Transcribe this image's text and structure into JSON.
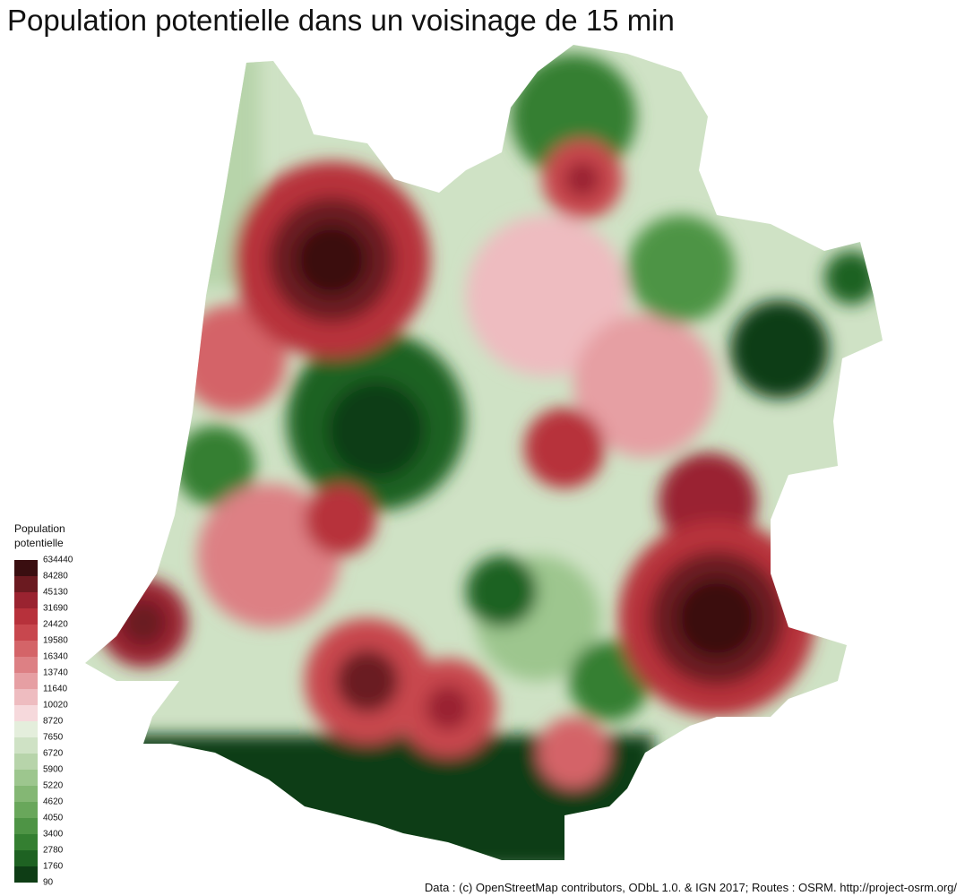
{
  "title": "Population potentielle dans un voisinage de 15 min",
  "legend": {
    "title": "Population potentielle",
    "breaks": [
      634440,
      84280,
      45130,
      31690,
      24420,
      19580,
      16340,
      13740,
      11640,
      10020,
      8720,
      7650,
      6720,
      5900,
      5220,
      4620,
      4050,
      3400,
      2780,
      1760,
      90
    ],
    "colors": [
      "#3a0e10",
      "#6b1a20",
      "#9a2330",
      "#b7313b",
      "#c8474e",
      "#d46468",
      "#dd8084",
      "#e69fa3",
      "#eebcc0",
      "#f6d9dc",
      "#e4eedc",
      "#cfe2c5",
      "#b7d4aa",
      "#9dc68e",
      "#84b774",
      "#69a75b",
      "#4e9445",
      "#347f31",
      "#1e6222",
      "#0e3d15"
    ]
  },
  "source": "Data : (c) OpenStreetMap contributors, ODbL 1.0. & IGN 2017; Routes : OSRM. http://project-osrm.org/"
}
